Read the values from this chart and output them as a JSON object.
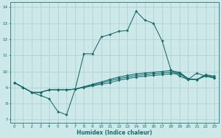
{
  "title": "",
  "xlabel": "Humidex (Indice chaleur)",
  "bg_color": "#cce8e8",
  "grid_color": "#aacccc",
  "line_color": "#1a6b6b",
  "xlim": [
    -0.5,
    23.5
  ],
  "ylim": [
    6.8,
    14.3
  ],
  "xticks": [
    0,
    1,
    2,
    3,
    4,
    5,
    6,
    7,
    8,
    9,
    10,
    11,
    12,
    13,
    14,
    15,
    16,
    17,
    18,
    19,
    20,
    21,
    22,
    23
  ],
  "yticks": [
    7,
    8,
    9,
    10,
    11,
    12,
    13,
    14
  ],
  "lines": [
    {
      "x": [
        0,
        1,
        2,
        3,
        4,
        5,
        6,
        7,
        8,
        9,
        10,
        11,
        12,
        13,
        14,
        15,
        16,
        17,
        18,
        19,
        20,
        21,
        22,
        23
      ],
      "y": [
        9.3,
        9.0,
        8.7,
        8.5,
        8.3,
        7.5,
        7.3,
        8.9,
        11.1,
        11.1,
        12.15,
        12.3,
        12.5,
        12.55,
        13.75,
        13.2,
        13.0,
        11.9,
        10.1,
        9.7,
        9.5,
        9.9,
        9.7,
        9.6
      ]
    },
    {
      "x": [
        0,
        1,
        2,
        3,
        4,
        5,
        6,
        7,
        8,
        9,
        10,
        11,
        12,
        13,
        14,
        15,
        16,
        17,
        18,
        19,
        20,
        21,
        22,
        23
      ],
      "y": [
        9.3,
        9.0,
        8.7,
        8.7,
        8.85,
        8.85,
        8.85,
        8.9,
        9.0,
        9.1,
        9.2,
        9.3,
        9.45,
        9.55,
        9.65,
        9.7,
        9.75,
        9.8,
        9.85,
        9.85,
        9.5,
        9.5,
        9.7,
        9.6
      ]
    },
    {
      "x": [
        0,
        1,
        2,
        3,
        4,
        5,
        6,
        7,
        8,
        9,
        10,
        11,
        12,
        13,
        14,
        15,
        16,
        17,
        18,
        19,
        20,
        21,
        22,
        23
      ],
      "y": [
        9.3,
        9.0,
        8.7,
        8.7,
        8.85,
        8.85,
        8.85,
        8.9,
        9.05,
        9.2,
        9.35,
        9.5,
        9.65,
        9.75,
        9.85,
        9.9,
        9.95,
        10.0,
        10.05,
        9.95,
        9.55,
        9.5,
        9.8,
        9.7
      ]
    },
    {
      "x": [
        0,
        1,
        2,
        3,
        4,
        5,
        6,
        7,
        8,
        9,
        10,
        11,
        12,
        13,
        14,
        15,
        16,
        17,
        18,
        19,
        20,
        21,
        22,
        23
      ],
      "y": [
        9.3,
        9.0,
        8.7,
        8.7,
        8.85,
        8.85,
        8.85,
        8.9,
        9.02,
        9.15,
        9.28,
        9.42,
        9.55,
        9.65,
        9.75,
        9.8,
        9.86,
        9.9,
        9.95,
        9.9,
        9.52,
        9.48,
        9.76,
        9.65
      ]
    }
  ]
}
